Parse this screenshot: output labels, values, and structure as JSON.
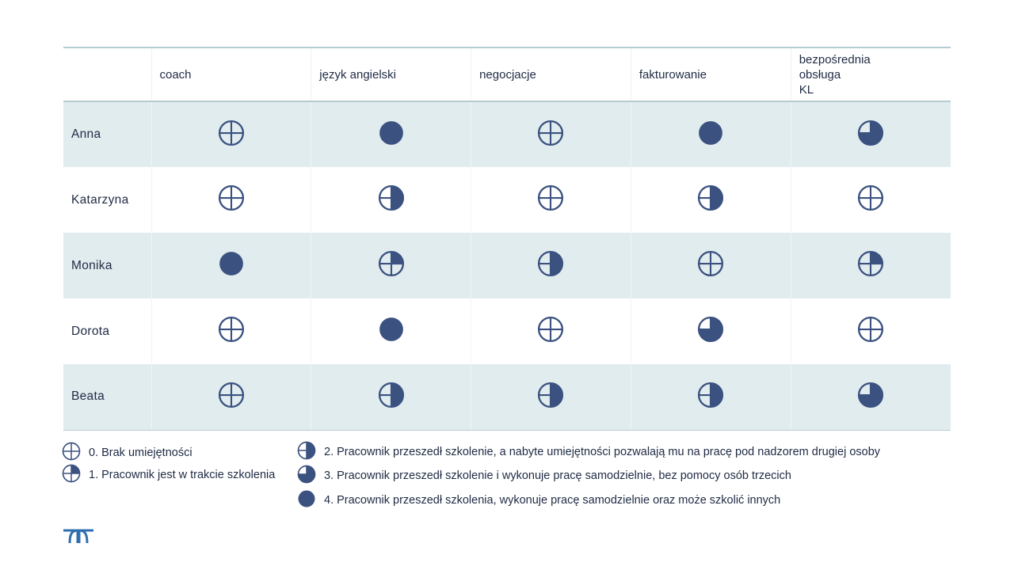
{
  "table": {
    "columns": [
      "coach",
      "język angielski",
      "negocjacje",
      "fakturowanie",
      "bezpośrednia\nobsługa\nKL"
    ],
    "rows": [
      {
        "name": "Anna",
        "levels": [
          0,
          4,
          0,
          4,
          3
        ]
      },
      {
        "name": "Katarzyna",
        "levels": [
          0,
          2,
          0,
          2,
          0
        ]
      },
      {
        "name": "Monika",
        "levels": [
          4,
          1,
          2,
          0,
          1
        ]
      },
      {
        "name": "Dorota",
        "levels": [
          0,
          4,
          0,
          3,
          0
        ]
      },
      {
        "name": "Beata",
        "levels": [
          0,
          2,
          2,
          2,
          3
        ]
      }
    ]
  },
  "legend": [
    {
      "level": 0,
      "text": "0. Brak umiejętności"
    },
    {
      "level": 1,
      "text": "1. Pracownik jest w trakcie szkolenia"
    },
    {
      "level": 2,
      "text": "2. Pracownik przeszedł szkolenie, a nabyte umiejętności pozwalają mu na pracę pod nadzorem drugiej osoby"
    },
    {
      "level": 3,
      "text": "3. Pracownik przeszedł szkolenie i wykonuje pracę samodzielnie, bez pomocy osób trzecich"
    },
    {
      "level": 4,
      "text": "4. Pracownik przeszedł szkolenia, wykonuje pracę samodzielnie oraz może szkolić innych"
    }
  ],
  "icons": {
    "skill_indicator": "harvey-ball-icon",
    "logo": "randstad-logo-icon"
  },
  "colors": {
    "fill": "#3b5280",
    "stripe": "#e1ecef",
    "rule": "#b5cdd2"
  }
}
